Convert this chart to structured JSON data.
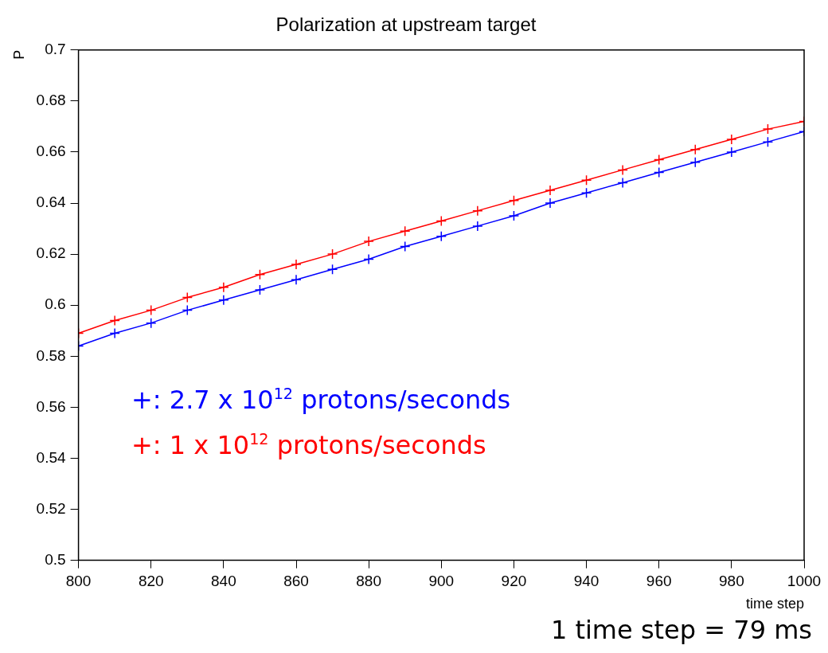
{
  "chart_data": {
    "type": "line",
    "title": "Polarization at upstream target",
    "xlabel": "time step",
    "ylabel": "P",
    "x": [
      800,
      810,
      820,
      830,
      840,
      850,
      860,
      870,
      880,
      890,
      900,
      910,
      920,
      930,
      940,
      950,
      960,
      970,
      980,
      990,
      1000
    ],
    "series": [
      {
        "name": "+: 2.7 x 10$^{12}$ protons/seconds",
        "color": "#0000ff",
        "values": [
          0.584,
          0.589,
          0.593,
          0.598,
          0.602,
          0.606,
          0.61,
          0.614,
          0.618,
          0.623,
          0.627,
          0.631,
          0.635,
          0.64,
          0.644,
          0.648,
          0.652,
          0.656,
          0.66,
          0.664,
          0.668
        ]
      },
      {
        "name": "+: 1 x 10$^{12}$ protons/seconds",
        "color": "#ff0000",
        "values": [
          0.589,
          0.594,
          0.598,
          0.603,
          0.607,
          0.612,
          0.616,
          0.62,
          0.625,
          0.629,
          0.633,
          0.637,
          0.641,
          0.645,
          0.649,
          0.653,
          0.657,
          0.661,
          0.665,
          0.669,
          0.672
        ]
      }
    ],
    "xlim": [
      800,
      1000
    ],
    "xticks": [
      800,
      820,
      840,
      860,
      880,
      900,
      920,
      940,
      960,
      980,
      1000
    ],
    "ylim": [
      0.5,
      0.7
    ],
    "yticks": [
      0.5,
      0.52,
      0.54,
      0.56,
      0.58,
      0.6,
      0.62,
      0.64,
      0.66,
      0.68,
      0.7
    ],
    "grid": false,
    "legend": "left",
    "marker": "cross",
    "line_style": "solid",
    "annotations": [
      "1 time step = 79 ms"
    ]
  }
}
